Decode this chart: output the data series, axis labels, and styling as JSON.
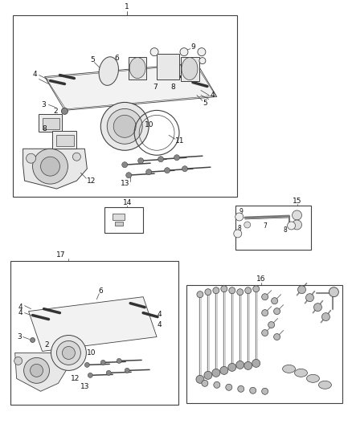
{
  "bg": "#ffffff",
  "lc": "#404040",
  "lc2": "#555555",
  "fs": 6.5,
  "fs_small": 5.5,
  "figw": 4.38,
  "figh": 5.33,
  "dpi": 100
}
